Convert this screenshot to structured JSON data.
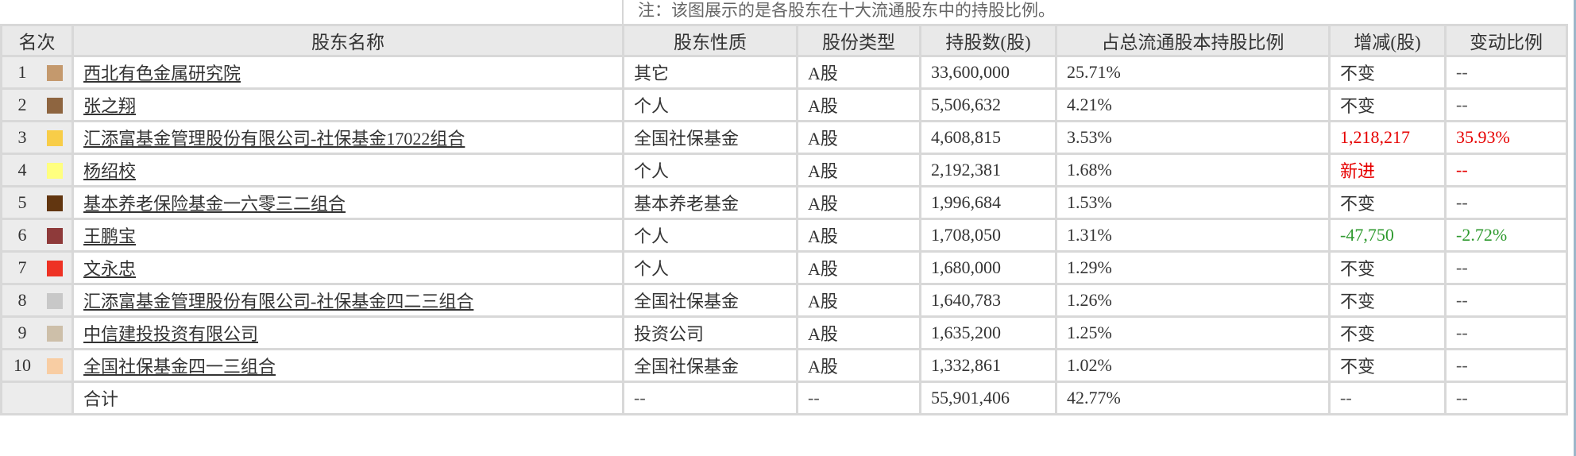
{
  "note": "注：该图展示的是各股东在十大流通股东中的持股比例。",
  "headers": [
    "名次",
    "股东名称",
    "股东性质",
    "股份类型",
    "持股数(股)",
    "占总流通股本持股比例",
    "增减(股)",
    "变动比例"
  ],
  "colors": {
    "increase": "#e60000",
    "decrease": "#2f9a2f"
  },
  "rows": [
    {
      "rank": "1",
      "color": "#c4996d",
      "name": "西北有色金属研究院",
      "nature": "其它",
      "type": "A股",
      "shares": "33,600,000",
      "ratio": "25.71%",
      "change": "不变",
      "change_pct": "--",
      "trend": "none"
    },
    {
      "rank": "2",
      "color": "#8e6540",
      "name": "张之翔",
      "nature": "个人",
      "type": "A股",
      "shares": "5,506,632",
      "ratio": "4.21%",
      "change": "不变",
      "change_pct": "--",
      "trend": "none"
    },
    {
      "rank": "3",
      "color": "#f8cd48",
      "name": "汇添富基金管理股份有限公司-社保基金17022组合",
      "nature": "全国社保基金",
      "type": "A股",
      "shares": "4,608,815",
      "ratio": "3.53%",
      "change": "1,218,217",
      "change_pct": "35.93%",
      "trend": "up"
    },
    {
      "rank": "4",
      "color": "#ffff7f",
      "name": "杨绍校",
      "nature": "个人",
      "type": "A股",
      "shares": "2,192,381",
      "ratio": "1.68%",
      "change": "新进",
      "change_pct": "--",
      "trend": "up"
    },
    {
      "rank": "5",
      "color": "#623610",
      "name": "基本养老保险基金一六零三二组合",
      "nature": "基本养老基金",
      "type": "A股",
      "shares": "1,996,684",
      "ratio": "1.53%",
      "change": "不变",
      "change_pct": "--",
      "trend": "none"
    },
    {
      "rank": "6",
      "color": "#8e3a3a",
      "name": "王鹏宝",
      "nature": "个人",
      "type": "A股",
      "shares": "1,708,050",
      "ratio": "1.31%",
      "change": "-47,750",
      "change_pct": "-2.72%",
      "trend": "down"
    },
    {
      "rank": "7",
      "color": "#ee3224",
      "name": "文永忠",
      "nature": "个人",
      "type": "A股",
      "shares": "1,680,000",
      "ratio": "1.29%",
      "change": "不变",
      "change_pct": "--",
      "trend": "none"
    },
    {
      "rank": "8",
      "color": "#c8c8c8",
      "name": "汇添富基金管理股份有限公司-社保基金四二三组合",
      "nature": "全国社保基金",
      "type": "A股",
      "shares": "1,640,783",
      "ratio": "1.26%",
      "change": "不变",
      "change_pct": "--",
      "trend": "none"
    },
    {
      "rank": "9",
      "color": "#cdbfa9",
      "name": "中信建投投资有限公司",
      "nature": "投资公司",
      "type": "A股",
      "shares": "1,635,200",
      "ratio": "1.25%",
      "change": "不变",
      "change_pct": "--",
      "trend": "none"
    },
    {
      "rank": "10",
      "color": "#f8cda3",
      "name": "全国社保基金四一三组合",
      "nature": "全国社保基金",
      "type": "A股",
      "shares": "1,332,861",
      "ratio": "1.02%",
      "change": "不变",
      "change_pct": "--",
      "trend": "none"
    }
  ],
  "total": {
    "label": "合计",
    "nature": "--",
    "type": "--",
    "shares": "55,901,406",
    "ratio": "42.77%",
    "change": "--",
    "change_pct": "--"
  }
}
